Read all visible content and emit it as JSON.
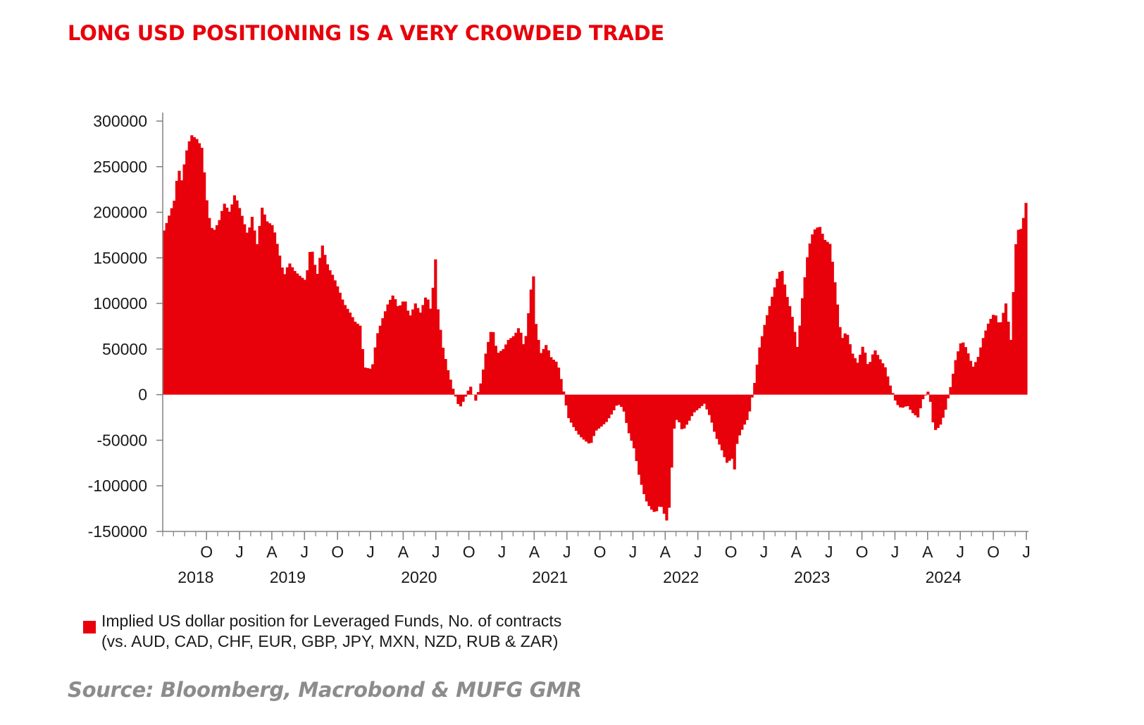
{
  "title": "LONG USD POSITIONING IS A VERY CROWDED TRADE",
  "source": "Source: Bloomberg, Macrobond & MUFG GMR",
  "colors": {
    "bar": "#e8000b",
    "title": "#e8000b",
    "source": "#8c8c8c",
    "axis": "#808080",
    "text": "#1a1a1a"
  },
  "chart_data": {
    "type": "bar",
    "title": "",
    "xlabel": "",
    "ylabel": "",
    "ylim": [
      -150000,
      300000
    ],
    "xlim": [
      "2018-06-01",
      "2025-01-07"
    ],
    "yticks": [
      300000,
      250000,
      200000,
      150000,
      100000,
      50000,
      0,
      -50000,
      -100000,
      -150000
    ],
    "ytick_labels": [
      "300000",
      "250000",
      "200000",
      "150000",
      "100000",
      "50000",
      "0",
      "-50000",
      "-100000",
      "-150000"
    ],
    "xticks": [
      {
        "label": "O",
        "date": "2018-10-01"
      },
      {
        "label": "J",
        "date": "2019-01-01"
      },
      {
        "label": "A",
        "date": "2019-04-01"
      },
      {
        "label": "J",
        "date": "2019-07-01"
      },
      {
        "label": "O",
        "date": "2019-10-01"
      },
      {
        "label": "J",
        "date": "2020-01-01"
      },
      {
        "label": "A",
        "date": "2020-04-01"
      },
      {
        "label": "J",
        "date": "2020-07-01"
      },
      {
        "label": "O",
        "date": "2020-10-01"
      },
      {
        "label": "J",
        "date": "2021-01-01"
      },
      {
        "label": "A",
        "date": "2021-04-01"
      },
      {
        "label": "J",
        "date": "2021-07-01"
      },
      {
        "label": "O",
        "date": "2021-10-01"
      },
      {
        "label": "J",
        "date": "2022-01-01"
      },
      {
        "label": "A",
        "date": "2022-04-01"
      },
      {
        "label": "J",
        "date": "2022-07-01"
      },
      {
        "label": "O",
        "date": "2022-10-01"
      },
      {
        "label": "J",
        "date": "2023-01-01"
      },
      {
        "label": "A",
        "date": "2023-04-01"
      },
      {
        "label": "J",
        "date": "2023-07-01"
      },
      {
        "label": "O",
        "date": "2023-10-01"
      },
      {
        "label": "J",
        "date": "2024-01-01"
      },
      {
        "label": "A",
        "date": "2024-04-01"
      },
      {
        "label": "J",
        "date": "2024-07-01"
      },
      {
        "label": "O",
        "date": "2024-10-01"
      },
      {
        "label": "J",
        "date": "2025-01-01"
      }
    ],
    "year_labels": [
      {
        "label": "2018",
        "date": "2018-09-01"
      },
      {
        "label": "2019",
        "date": "2019-05-15"
      },
      {
        "label": "2020",
        "date": "2020-05-15"
      },
      {
        "label": "2021",
        "date": "2021-05-15"
      },
      {
        "label": "2022",
        "date": "2022-05-15"
      },
      {
        "label": "2023",
        "date": "2023-05-15"
      },
      {
        "label": "2024",
        "date": "2024-05-15"
      }
    ],
    "grid": false,
    "legend_position": "bottom-left",
    "series": [
      {
        "name": "Implied US dollar position for Leveraged Funds, No. of contracts (vs. AUD, CAD, CHF, EUR, GBP, JPY, MXN, NZD, RUB & ZAR)",
        "legend_lines": [
          "Implied US dollar position for Leveraged Funds, No. of contracts",
          "(vs. AUD, CAD, CHF, EUR, GBP, JPY, MXN, NZD, RUB & ZAR)"
        ],
        "color": "#e8000b",
        "frequency": "weekly",
        "points": [
          [
            "2018-06-01",
            180000
          ],
          [
            "2018-07-01",
            215000
          ],
          [
            "2018-07-10",
            250000
          ],
          [
            "2018-07-20",
            235000
          ],
          [
            "2018-08-01",
            265000
          ],
          [
            "2018-08-15",
            285000
          ],
          [
            "2018-09-01",
            280000
          ],
          [
            "2018-09-15",
            270000
          ],
          [
            "2018-10-01",
            200000
          ],
          [
            "2018-10-15",
            178000
          ],
          [
            "2018-11-01",
            190000
          ],
          [
            "2018-11-15",
            210000
          ],
          [
            "2018-12-01",
            200000
          ],
          [
            "2018-12-15",
            220000
          ],
          [
            "2019-01-01",
            200000
          ],
          [
            "2019-01-20",
            175000
          ],
          [
            "2019-02-01",
            195000
          ],
          [
            "2019-02-15",
            165000
          ],
          [
            "2019-03-01",
            205000
          ],
          [
            "2019-03-15",
            190000
          ],
          [
            "2019-04-01",
            185000
          ],
          [
            "2019-04-15",
            160000
          ],
          [
            "2019-05-01",
            130000
          ],
          [
            "2019-05-15",
            145000
          ],
          [
            "2019-06-01",
            135000
          ],
          [
            "2019-06-15",
            130000
          ],
          [
            "2019-07-01",
            125000
          ],
          [
            "2019-07-15",
            165000
          ],
          [
            "2019-08-01",
            130000
          ],
          [
            "2019-08-15",
            165000
          ],
          [
            "2019-09-01",
            140000
          ],
          [
            "2019-09-15",
            130000
          ],
          [
            "2019-10-01",
            115000
          ],
          [
            "2019-10-15",
            100000
          ],
          [
            "2019-11-01",
            90000
          ],
          [
            "2019-11-15",
            80000
          ],
          [
            "2019-12-01",
            75000
          ],
          [
            "2019-12-10",
            30000
          ],
          [
            "2020-01-01",
            28000
          ],
          [
            "2020-01-15",
            65000
          ],
          [
            "2020-02-01",
            85000
          ],
          [
            "2020-02-15",
            100000
          ],
          [
            "2020-03-01",
            110000
          ],
          [
            "2020-03-15",
            95000
          ],
          [
            "2020-04-01",
            105000
          ],
          [
            "2020-04-15",
            85000
          ],
          [
            "2020-05-01",
            100000
          ],
          [
            "2020-05-15",
            90000
          ],
          [
            "2020-06-01",
            110000
          ],
          [
            "2020-06-15",
            90000
          ],
          [
            "2020-06-25",
            158000
          ],
          [
            "2020-07-01",
            100000
          ],
          [
            "2020-07-15",
            55000
          ],
          [
            "2020-08-01",
            25000
          ],
          [
            "2020-08-15",
            5000
          ],
          [
            "2020-09-01",
            -15000
          ],
          [
            "2020-09-15",
            -5000
          ],
          [
            "2020-10-01",
            10000
          ],
          [
            "2020-10-15",
            -8000
          ],
          [
            "2020-11-01",
            15000
          ],
          [
            "2020-11-15",
            50000
          ],
          [
            "2020-12-01",
            75000
          ],
          [
            "2020-12-15",
            45000
          ],
          [
            "2021-01-01",
            50000
          ],
          [
            "2021-01-15",
            60000
          ],
          [
            "2021-02-01",
            65000
          ],
          [
            "2021-02-15",
            75000
          ],
          [
            "2021-03-01",
            50000
          ],
          [
            "2021-03-15",
            100000
          ],
          [
            "2021-03-25",
            138000
          ],
          [
            "2021-04-01",
            80000
          ],
          [
            "2021-04-15",
            45000
          ],
          [
            "2021-05-01",
            55000
          ],
          [
            "2021-05-15",
            40000
          ],
          [
            "2021-06-01",
            35000
          ],
          [
            "2021-06-15",
            10000
          ],
          [
            "2021-07-01",
            -25000
          ],
          [
            "2021-07-15",
            -35000
          ],
          [
            "2021-08-01",
            -45000
          ],
          [
            "2021-08-15",
            -50000
          ],
          [
            "2021-09-01",
            -55000
          ],
          [
            "2021-09-15",
            -40000
          ],
          [
            "2021-10-01",
            -35000
          ],
          [
            "2021-10-15",
            -30000
          ],
          [
            "2021-11-01",
            -20000
          ],
          [
            "2021-11-15",
            -10000
          ],
          [
            "2021-12-01",
            -15000
          ],
          [
            "2021-12-15",
            -40000
          ],
          [
            "2022-01-01",
            -60000
          ],
          [
            "2022-01-15",
            -90000
          ],
          [
            "2022-02-01",
            -115000
          ],
          [
            "2022-02-15",
            -125000
          ],
          [
            "2022-03-01",
            -130000
          ],
          [
            "2022-03-15",
            -120000
          ],
          [
            "2022-04-01",
            -138000
          ],
          [
            "2022-04-10",
            -120000
          ],
          [
            "2022-04-20",
            -40000
          ],
          [
            "2022-05-01",
            -25000
          ],
          [
            "2022-05-15",
            -40000
          ],
          [
            "2022-06-01",
            -30000
          ],
          [
            "2022-06-15",
            -20000
          ],
          [
            "2022-07-01",
            -15000
          ],
          [
            "2022-07-15",
            -10000
          ],
          [
            "2022-08-01",
            -25000
          ],
          [
            "2022-08-15",
            -45000
          ],
          [
            "2022-09-01",
            -60000
          ],
          [
            "2022-09-15",
            -75000
          ],
          [
            "2022-10-01",
            -70000
          ],
          [
            "2022-10-05",
            -90000
          ],
          [
            "2022-10-15",
            -50000
          ],
          [
            "2022-11-01",
            -35000
          ],
          [
            "2022-11-15",
            -25000
          ],
          [
            "2022-12-01",
            10000
          ],
          [
            "2022-12-15",
            50000
          ],
          [
            "2023-01-01",
            80000
          ],
          [
            "2023-01-15",
            100000
          ],
          [
            "2023-02-01",
            125000
          ],
          [
            "2023-02-15",
            140000
          ],
          [
            "2023-03-01",
            110000
          ],
          [
            "2023-03-15",
            90000
          ],
          [
            "2023-04-01",
            50000
          ],
          [
            "2023-04-15",
            110000
          ],
          [
            "2023-05-01",
            160000
          ],
          [
            "2023-05-15",
            180000
          ],
          [
            "2023-06-01",
            185000
          ],
          [
            "2023-06-15",
            170000
          ],
          [
            "2023-07-01",
            165000
          ],
          [
            "2023-07-15",
            120000
          ],
          [
            "2023-08-01",
            60000
          ],
          [
            "2023-08-15",
            70000
          ],
          [
            "2023-09-01",
            45000
          ],
          [
            "2023-09-15",
            35000
          ],
          [
            "2023-10-01",
            55000
          ],
          [
            "2023-10-15",
            30000
          ],
          [
            "2023-11-01",
            50000
          ],
          [
            "2023-11-15",
            40000
          ],
          [
            "2023-12-01",
            30000
          ],
          [
            "2023-12-15",
            10000
          ],
          [
            "2024-01-01",
            -10000
          ],
          [
            "2024-01-15",
            -15000
          ],
          [
            "2024-02-01",
            -12000
          ],
          [
            "2024-02-15",
            -20000
          ],
          [
            "2024-03-01",
            -25000
          ],
          [
            "2024-03-15",
            -5000
          ],
          [
            "2024-04-01",
            5000
          ],
          [
            "2024-04-15",
            -40000
          ],
          [
            "2024-05-01",
            -35000
          ],
          [
            "2024-05-15",
            -20000
          ],
          [
            "2024-06-01",
            10000
          ],
          [
            "2024-06-15",
            40000
          ],
          [
            "2024-07-01",
            60000
          ],
          [
            "2024-07-15",
            50000
          ],
          [
            "2024-08-01",
            30000
          ],
          [
            "2024-08-15",
            40000
          ],
          [
            "2024-09-01",
            65000
          ],
          [
            "2024-09-15",
            80000
          ],
          [
            "2024-10-01",
            90000
          ],
          [
            "2024-10-15",
            75000
          ],
          [
            "2024-11-01",
            100000
          ],
          [
            "2024-11-15",
            60000
          ],
          [
            "2024-12-01",
            180000
          ],
          [
            "2024-12-15",
            182000
          ],
          [
            "2025-01-01",
            222000
          ]
        ]
      }
    ]
  }
}
